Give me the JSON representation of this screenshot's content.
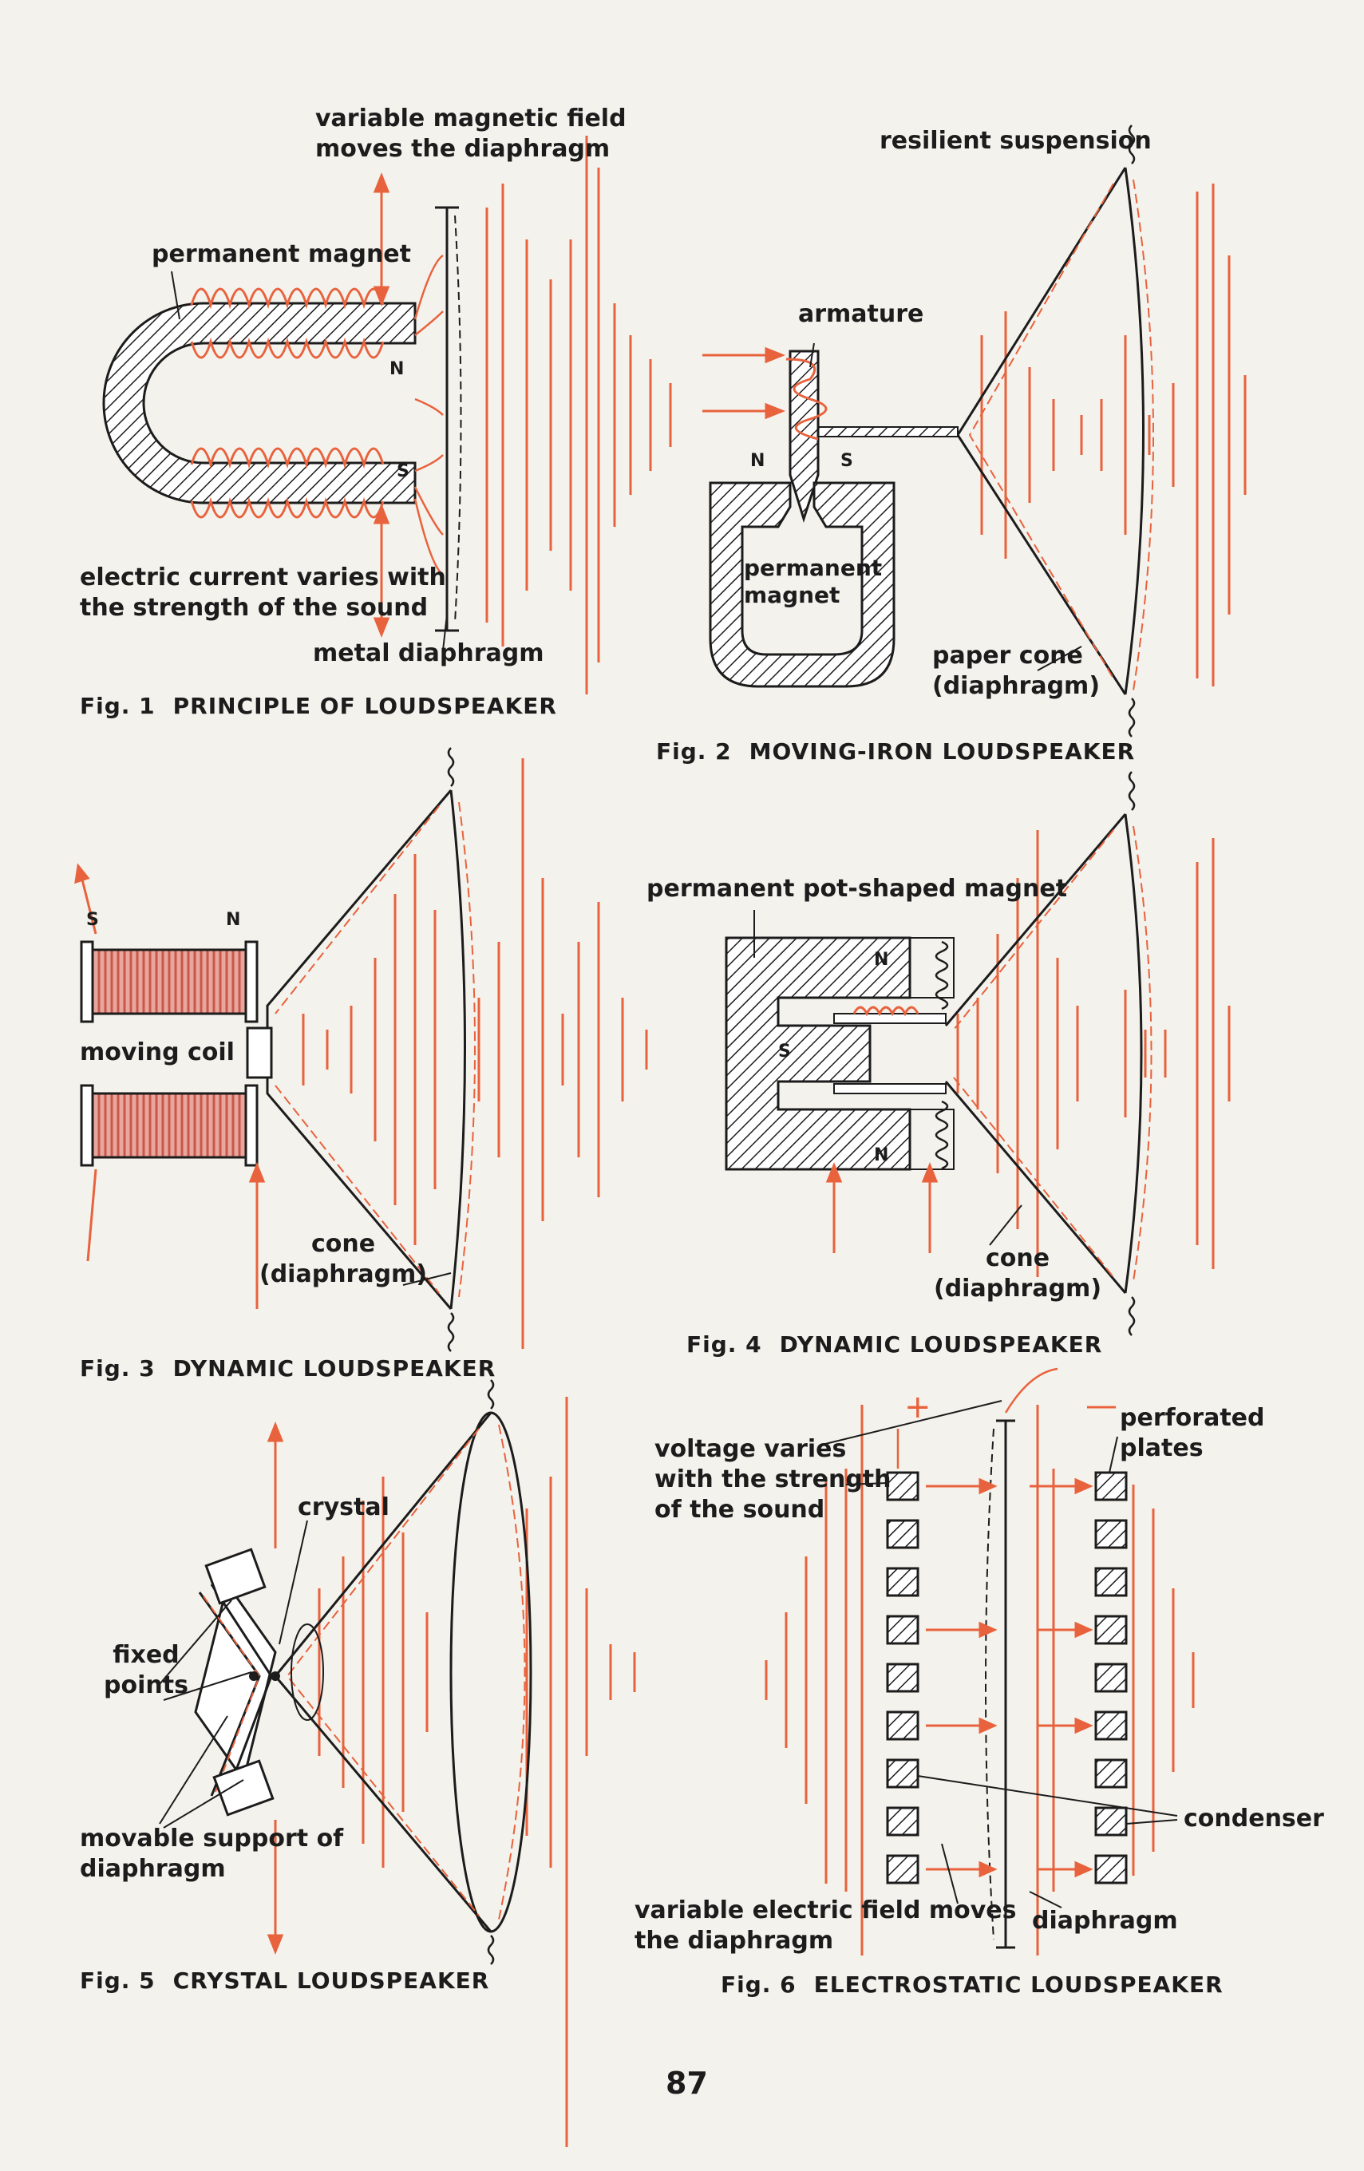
{
  "colors": {
    "accent": "#e8623d",
    "ink": "#1c1c1c",
    "paper": "#f4f2ec",
    "coil_fill": "#c9574b"
  },
  "fig1": {
    "caption_num": "Fig. 1",
    "caption": "PRINCIPLE OF LOUDSPEAKER",
    "field_label": "variable magnetic field\nmoves the diaphragm",
    "magnet_label": "permanent magnet",
    "current_label": "electric current varies with\nthe strength of the sound",
    "diaphragm_label": "metal diaphragm",
    "pole_n": "N",
    "pole_s": "S"
  },
  "fig2": {
    "caption_num": "Fig. 2",
    "caption": "MOVING-IRON LOUDSPEAKER",
    "suspension_label": "resilient suspension",
    "armature_label": "armature",
    "magnet_label": "permanent\nmagnet",
    "cone_label": "paper cone\n(diaphragm)",
    "pole_n": "N",
    "pole_s": "S"
  },
  "fig3": {
    "caption_num": "Fig. 3",
    "caption": "DYNAMIC LOUDSPEAKER",
    "coil_label": "moving coil",
    "cone_label": "cone\n(diaphragm)",
    "pole_s": "S",
    "pole_n": "N"
  },
  "fig4": {
    "caption_num": "Fig. 4",
    "caption": "DYNAMIC LOUDSPEAKER",
    "magnet_label": "permanent pot-shaped magnet",
    "cone_label": "cone\n(diaphragm)",
    "pole_n_top": "N",
    "pole_s": "S",
    "pole_n_bottom": "N"
  },
  "fig5": {
    "caption_num": "Fig. 5",
    "caption": "CRYSTAL LOUDSPEAKER",
    "crystal_label": "crystal",
    "fixed_label": "fixed\npoints",
    "support_label": "movable support of\ndiaphragm"
  },
  "fig6": {
    "caption_num": "Fig. 6",
    "caption": "ELECTROSTATIC LOUDSPEAKER",
    "plates_label": "perforated\nplates",
    "voltage_label": "voltage varies\nwith the strength\nof the sound",
    "condenser_label": "condenser",
    "field_label": "variable electric field moves\nthe diaphragm",
    "diaphragm_label": "diaphragm",
    "plus": "+",
    "minus": "—"
  },
  "page_number": "87"
}
